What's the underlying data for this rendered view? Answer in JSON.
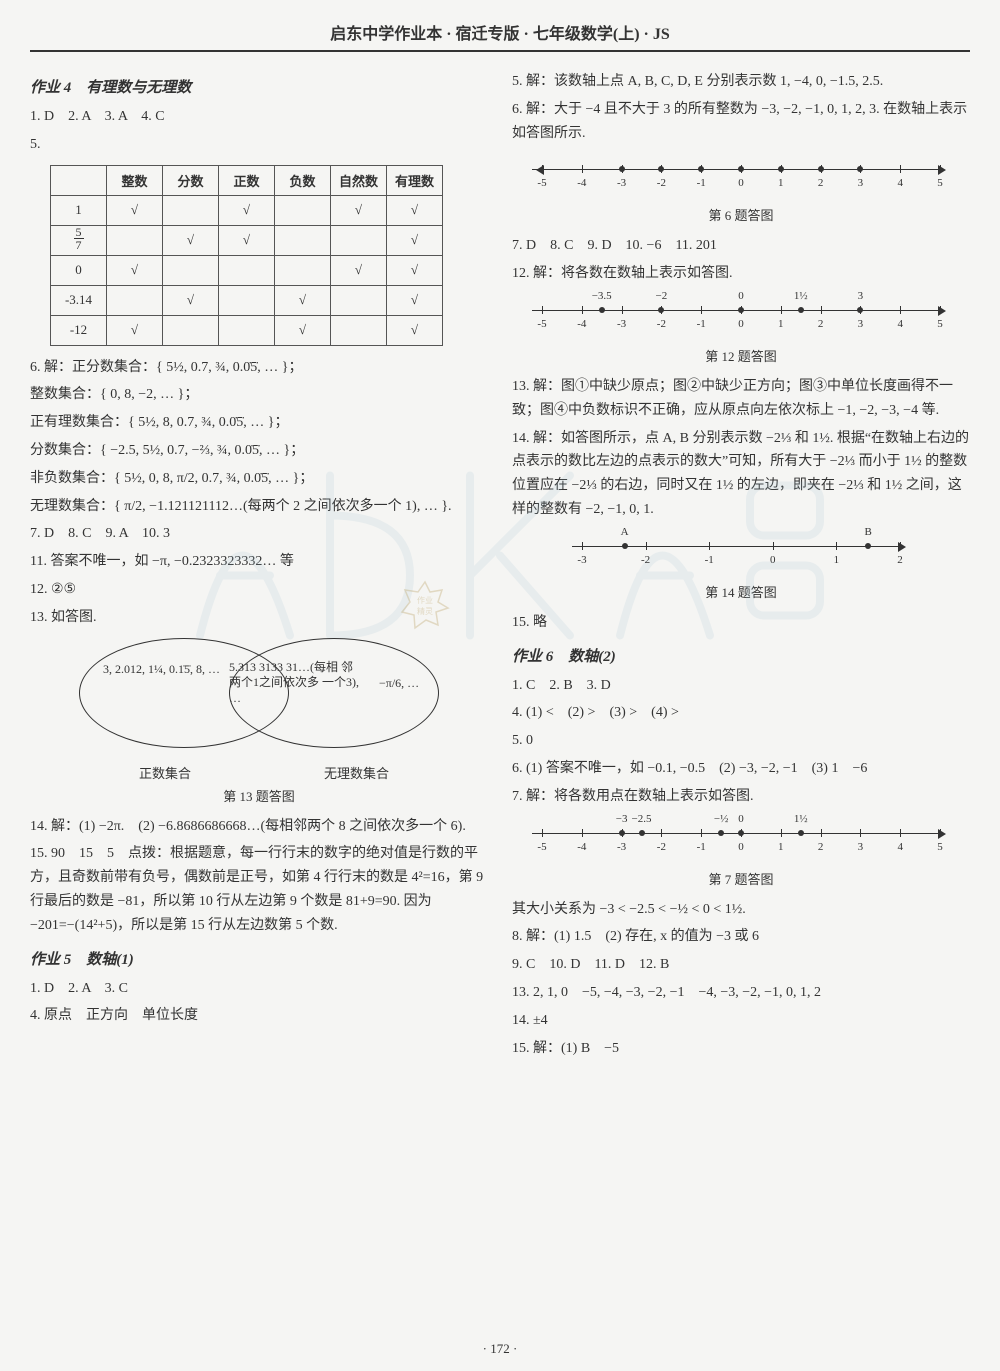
{
  "header": "启东中学作业本 · 宿迁专版 · 七年级数学(上) · JS",
  "pagefoot": "· 172 ·",
  "left": {
    "hw4": {
      "title": "作业 4　有理数与无理数",
      "answers1": "1. D　2. A　3. A　4. C",
      "ans5": "5.",
      "table": {
        "head": [
          "",
          "整数",
          "分数",
          "正数",
          "负数",
          "自然数",
          "有理数"
        ],
        "rows": [
          {
            "label": "1",
            "cells": [
              "√",
              "",
              "√",
              "",
              "√",
              "√"
            ]
          },
          {
            "label": "5/7",
            "cells": [
              "",
              "√",
              "√",
              "",
              "",
              "√"
            ]
          },
          {
            "label": "0",
            "cells": [
              "√",
              "",
              "",
              "",
              "√",
              "√"
            ]
          },
          {
            "label": "-3.14",
            "cells": [
              "",
              "√",
              "",
              "√",
              "",
              "√"
            ]
          },
          {
            "label": "-12",
            "cells": [
              "√",
              "",
              "",
              "√",
              "",
              "√"
            ]
          }
        ]
      },
      "ans6_intro": "6. 解：正分数集合：{ 5½, 0.7, ¾, 0.0̇5̇, … }；",
      "ans6_nat": "整数集合：{ 0, 8, −2, … }；",
      "ans6_posrat": "正有理数集合：{ 5½, 8, 0.7, ¾, 0.0̇5̇, … }；",
      "ans6_frac": "分数集合：{ −2.5, 5½, 0.7, −⅔, ¾, 0.0̇5̇, … }；",
      "ans6_nonneg": "非负数集合：{ 5½, 0, 8, π/2, 0.7, ¾, 0.0̇5̇, … }；",
      "ans6_irr": "无理数集合：{ π/2, −1.121121112…(每两个 2 之间依次多一个 1), … }.",
      "answers2": "7. D　8. C　9. A　10. 3",
      "ans11": "11. 答案不唯一，如 −π, −0.2323323332… 等",
      "ans12": "12. ②⑤",
      "ans13": "13. 如答图.",
      "venn": {
        "left_label": "正数集合",
        "right_label": "无理数集合",
        "left_text": "3, 2.012, 1¼,\n0.1̇5̇, 8,\n…",
        "mid_text": "5.313 3133 31…(每相\n邻两个1之间依次多\n一个3), …",
        "right_text": "−π/6,\n…",
        "caption": "第 13 题答图"
      },
      "ans14": "14. 解：(1) −2π.　(2) −6.8686686668…(每相邻两个 8 之间依次多一个 6).",
      "ans15": "15. 90　15　5　点拨：根据题意，每一行行末的数字的绝对值是行数的平方，且奇数前带有负号，偶数前是正号，如第 4 行行末的数是 4²=16，第 9 行最后的数是 −81，所以第 10 行从左边第 9 个数是 81+9=90. 因为 −201=−(14²+5)，所以是第 15 行从左边数第 5 个数."
    },
    "hw5": {
      "title": "作业 5　数轴(1)",
      "answers1": "1. D　2. A　3. C",
      "ans4": "4. 原点　正方向　单位长度"
    }
  },
  "right": {
    "hw5cont": {
      "ans5": "5. 解：该数轴上点 A, B, C, D, E 分别表示数 1, −4, 0, −1.5, 2.5.",
      "ans6": "6. 解：大于 −4 且不大于 3 的所有整数为 −3, −2, −1, 0, 1, 2, 3. 在数轴上表示如答图所示.",
      "nl6": {
        "ticks": [
          -5,
          -4,
          -3,
          -2,
          -1,
          0,
          1,
          2,
          3,
          4,
          5
        ],
        "dots": [
          -3,
          -2,
          -1,
          0,
          1,
          2,
          3
        ],
        "caption": "第 6 题答图"
      },
      "answers2": "7. D　8. C　9. D　10. −6　11. 201",
      "ans12": "12. 解：将各数在数轴上表示如答图.",
      "nl12": {
        "ticks": [
          -5,
          -4,
          -3,
          -2,
          -1,
          0,
          1,
          2,
          3,
          4,
          5
        ],
        "uppers": [
          {
            "x": -3.5,
            "t": "−3.5"
          },
          {
            "x": -2,
            "t": "−2"
          },
          {
            "x": 0,
            "t": "0"
          },
          {
            "x": 1.5,
            "t": "1½"
          },
          {
            "x": 3,
            "t": "3"
          }
        ],
        "caption": "第 12 题答图"
      },
      "ans13": "13. 解：图①中缺少原点；图②中缺少正方向；图③中单位长度画得不一致；图④中负数标识不正确，应从原点向左依次标上 −1, −2, −3, −4 等.",
      "ans14a": "14. 解：如答图所示，点 A, B 分别表示数 −2⅓ 和 1½. 根据“在数轴上右边的点表示的数比左边的点表示的数大”可知，所有大于 −2⅓ 而小于 1½ 的整数位置应在 −2⅓ 的右边，同时又在 1½ 的左边，即夹在 −2⅓ 和 1½ 之间，这样的整数有 −2, −1, 0, 1.",
      "nl14": {
        "ticks": [
          -3,
          -2,
          -1,
          0,
          1,
          2
        ],
        "A": {
          "x": -2.33,
          "t": "A"
        },
        "B": {
          "x": 1.5,
          "t": "B"
        },
        "caption": "第 14 题答图"
      },
      "ans15": "15. 略"
    },
    "hw6": {
      "title": "作业 6　数轴(2)",
      "answers1": "1. C　2. B　3. D",
      "ans4": "4. (1) <　(2) >　(3) >　(4) >",
      "ans5": "5. 0",
      "ans6": "6. (1) 答案不唯一，如 −0.1, −0.5　(2) −3, −2, −1　(3) 1　−6",
      "ans7": "7. 解：将各数用点在数轴上表示如答图.",
      "nl7": {
        "ticks": [
          -5,
          -4,
          -3,
          -2,
          -1,
          0,
          1,
          2,
          3,
          4,
          5
        ],
        "uppers": [
          {
            "x": -3,
            "t": "−3"
          },
          {
            "x": -2.5,
            "t": "−2.5"
          },
          {
            "x": -0.5,
            "t": "−½"
          },
          {
            "x": 0,
            "t": "0"
          },
          {
            "x": 1.5,
            "t": "1½"
          }
        ],
        "caption": "第 7 题答图"
      },
      "ans7b": "其大小关系为 −3 < −2.5 < −½ < 0 < 1½.",
      "ans8": "8. 解：(1) 1.5　(2) 存在, x 的值为 −3 或 6",
      "answers2": "9. C　10. D　11. D　12. B",
      "ans13": "13. 2, 1, 0　−5, −4, −3, −2, −1　−4, −3, −2, −1, 0, 1, 2",
      "ans14": "14. ±4",
      "ans15": "15. 解：(1) B　−5"
    }
  },
  "colors": {
    "bg": "#f5f5f3",
    "text": "#333333",
    "border": "#555555",
    "watermark": "#9dbecf"
  }
}
